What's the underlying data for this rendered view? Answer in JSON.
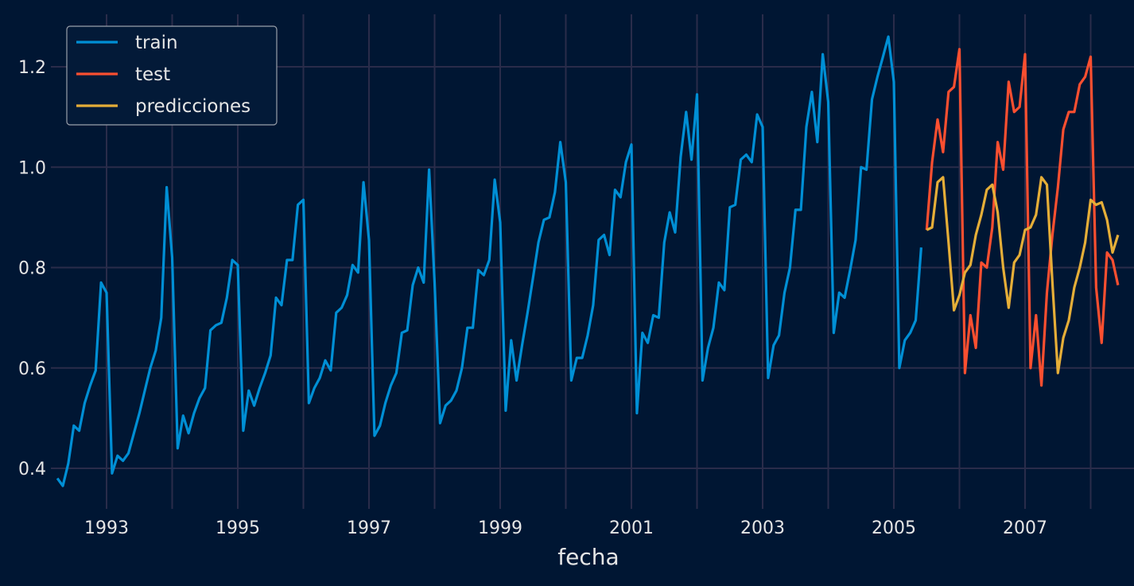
{
  "chart_data": {
    "type": "line",
    "title": "",
    "xlabel": "fecha",
    "ylabel": "",
    "ylim": [
      0.325,
      1.31
    ],
    "xlim": [
      "1992-03",
      "2008-07"
    ],
    "grid": true,
    "legend_position": "top-left",
    "yticks": [
      "0.4",
      "0.6",
      "0.8",
      "1.0",
      "1.2"
    ],
    "ytick_values": [
      0.4,
      0.6,
      0.8,
      1.0,
      1.2
    ],
    "xticks": [
      "1993",
      "1995",
      "1997",
      "1999",
      "2001",
      "2003",
      "2005",
      "2007"
    ],
    "colors": {
      "background": "#001633",
      "grid": "#2a2c4a",
      "train": "#008fd5",
      "test": "#fc4f30",
      "predicciones": "#e5ae38"
    },
    "series": [
      {
        "name": "train",
        "start": "1992-04",
        "values": [
          0.38,
          0.365,
          0.41,
          0.485,
          0.475,
          0.53,
          0.565,
          0.595,
          0.77,
          0.75,
          0.39,
          0.425,
          0.415,
          0.43,
          0.47,
          0.51,
          0.555,
          0.6,
          0.635,
          0.7,
          0.96,
          0.82,
          0.44,
          0.505,
          0.47,
          0.51,
          0.54,
          0.56,
          0.675,
          0.685,
          0.69,
          0.74,
          0.815,
          0.805,
          0.475,
          0.555,
          0.525,
          0.56,
          0.59,
          0.625,
          0.74,
          0.725,
          0.815,
          0.815,
          0.925,
          0.935,
          0.53,
          0.56,
          0.58,
          0.615,
          0.595,
          0.71,
          0.72,
          0.745,
          0.805,
          0.79,
          0.97,
          0.855,
          0.465,
          0.485,
          0.53,
          0.565,
          0.59,
          0.67,
          0.675,
          0.765,
          0.8,
          0.77,
          0.995,
          0.77,
          0.49,
          0.525,
          0.535,
          0.555,
          0.6,
          0.68,
          0.68,
          0.795,
          0.785,
          0.815,
          0.975,
          0.89,
          0.515,
          0.655,
          0.575,
          0.645,
          0.71,
          0.78,
          0.85,
          0.895,
          0.9,
          0.95,
          1.05,
          0.97,
          0.575,
          0.62,
          0.62,
          0.665,
          0.725,
          0.855,
          0.865,
          0.825,
          0.955,
          0.94,
          1.01,
          1.045,
          0.51,
          0.67,
          0.65,
          0.705,
          0.7,
          0.85,
          0.91,
          0.87,
          1.02,
          1.11,
          1.015,
          1.145,
          0.575,
          0.64,
          0.68,
          0.77,
          0.755,
          0.92,
          0.925,
          1.015,
          1.025,
          1.01,
          1.105,
          1.08,
          0.58,
          0.645,
          0.665,
          0.75,
          0.8,
          0.915,
          0.915,
          1.08,
          1.15,
          1.05,
          1.225,
          1.13,
          0.67,
          0.75,
          0.74,
          0.795,
          0.855,
          1.0,
          0.995,
          1.135,
          1.18,
          1.22,
          1.26,
          1.17,
          0.6,
          0.655,
          0.67,
          0.695,
          0.84
        ]
      },
      {
        "name": "test",
        "start": "2005-07",
        "values": [
          0.875,
          1.01,
          1.095,
          1.03,
          1.15,
          1.16,
          1.235,
          0.59,
          0.705,
          0.64,
          0.81,
          0.8,
          0.88,
          1.05,
          0.995,
          1.17,
          1.11,
          1.12,
          1.225,
          0.6,
          0.705,
          0.565,
          0.75,
          0.865,
          0.96,
          1.075,
          1.11,
          1.11,
          1.165,
          1.18,
          1.22,
          0.76,
          0.65,
          0.83,
          0.815,
          0.765
        ]
      },
      {
        "name": "predicciones",
        "start": "2005-07",
        "values": [
          0.875,
          0.88,
          0.97,
          0.98,
          0.85,
          0.715,
          0.745,
          0.79,
          0.805,
          0.865,
          0.905,
          0.955,
          0.965,
          0.91,
          0.8,
          0.72,
          0.81,
          0.825,
          0.875,
          0.88,
          0.905,
          0.98,
          0.965,
          0.77,
          0.59,
          0.66,
          0.695,
          0.76,
          0.8,
          0.85,
          0.935,
          0.925,
          0.93,
          0.895,
          0.83,
          0.865
        ]
      }
    ]
  }
}
